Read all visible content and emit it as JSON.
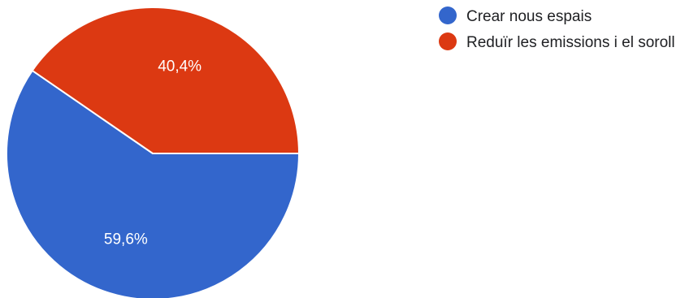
{
  "chart_data": {
    "type": "pie",
    "title": "",
    "categories": [
      "Crear nous espais",
      "Reduïr les emissions i el soroll"
    ],
    "values": [
      59.6,
      40.4
    ],
    "value_labels": [
      "59,6%",
      "40,4%"
    ],
    "colors": [
      "#3366cc",
      "#dc3912"
    ],
    "legend": {
      "position": "right-top"
    }
  }
}
